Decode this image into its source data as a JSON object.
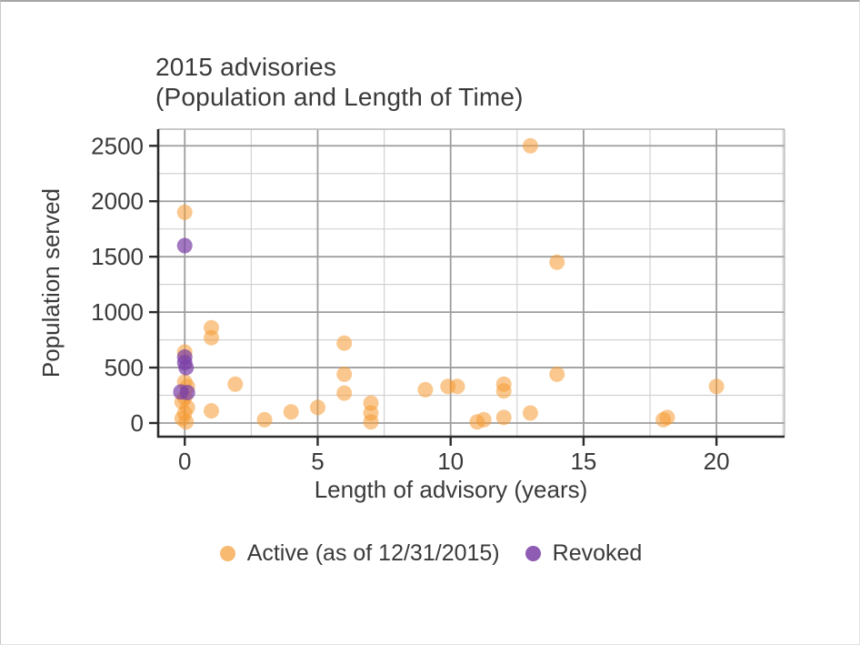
{
  "title": {
    "line1": "2015 advisories",
    "line2": "(Population and Length of Time)"
  },
  "x_axis": {
    "label": "Length of advisory (years)",
    "major_ticks": [
      0,
      5,
      10,
      15,
      20
    ],
    "minor_ticks": [
      2.5,
      7.5,
      12.5,
      17.5,
      22.5
    ]
  },
  "y_axis": {
    "label": "Population served",
    "major_ticks": [
      0,
      500,
      1000,
      1500,
      2000,
      2500
    ],
    "minor_ticks": [
      250,
      750,
      1250,
      1750,
      2250
    ]
  },
  "colors": {
    "active": "#F59B33",
    "revoked": "#7A3FA5",
    "major_grid": "#9e9e9e",
    "minor_grid": "#d2d2d2",
    "axis_line": "#2b2b2b",
    "panel_border": "#b8b8b8",
    "text": "#3a3a3a"
  },
  "chart_data": {
    "type": "scatter",
    "title": "2015 advisories (Population and Length of Time)",
    "xlabel": "Length of advisory (years)",
    "ylabel": "Population served",
    "xlim": [
      -1,
      22.56
    ],
    "ylim": [
      -123,
      2650
    ],
    "grid": true,
    "legend_position": "bottom",
    "series": [
      {
        "name": "Active (as of 12/31/2015)",
        "color": "#F59B33",
        "opacity": 0.55,
        "marker_radius": 8.5,
        "points": [
          [
            0,
            1900
          ],
          [
            1,
            860
          ],
          [
            1,
            770
          ],
          [
            0,
            640
          ],
          [
            0,
            370
          ],
          [
            0.1,
            330
          ],
          [
            0,
            230
          ],
          [
            -0.1,
            190
          ],
          [
            0.1,
            140
          ],
          [
            0,
            90
          ],
          [
            -0.1,
            40
          ],
          [
            0.05,
            10
          ],
          [
            1,
            110
          ],
          [
            1.9,
            350
          ],
          [
            3,
            30
          ],
          [
            4,
            100
          ],
          [
            5,
            140
          ],
          [
            6,
            720
          ],
          [
            6,
            440
          ],
          [
            6,
            270
          ],
          [
            7,
            180
          ],
          [
            7,
            90
          ],
          [
            7,
            10
          ],
          [
            9.05,
            300
          ],
          [
            9.9,
            330
          ],
          [
            10.25,
            330
          ],
          [
            11,
            10
          ],
          [
            11.25,
            30
          ],
          [
            12,
            350
          ],
          [
            12,
            290
          ],
          [
            12,
            50
          ],
          [
            13,
            2500
          ],
          [
            13,
            90
          ],
          [
            14,
            1450
          ],
          [
            14,
            440
          ],
          [
            18,
            30
          ],
          [
            18.15,
            50
          ],
          [
            20,
            330
          ]
        ]
      },
      {
        "name": "Revoked",
        "color": "#7A3FA5",
        "opacity": 0.7,
        "marker_radius": 8.5,
        "points": [
          [
            0,
            1600
          ],
          [
            0,
            595
          ],
          [
            0,
            545
          ],
          [
            0.05,
            500
          ],
          [
            -0.15,
            280
          ],
          [
            0.1,
            275
          ]
        ]
      }
    ]
  }
}
